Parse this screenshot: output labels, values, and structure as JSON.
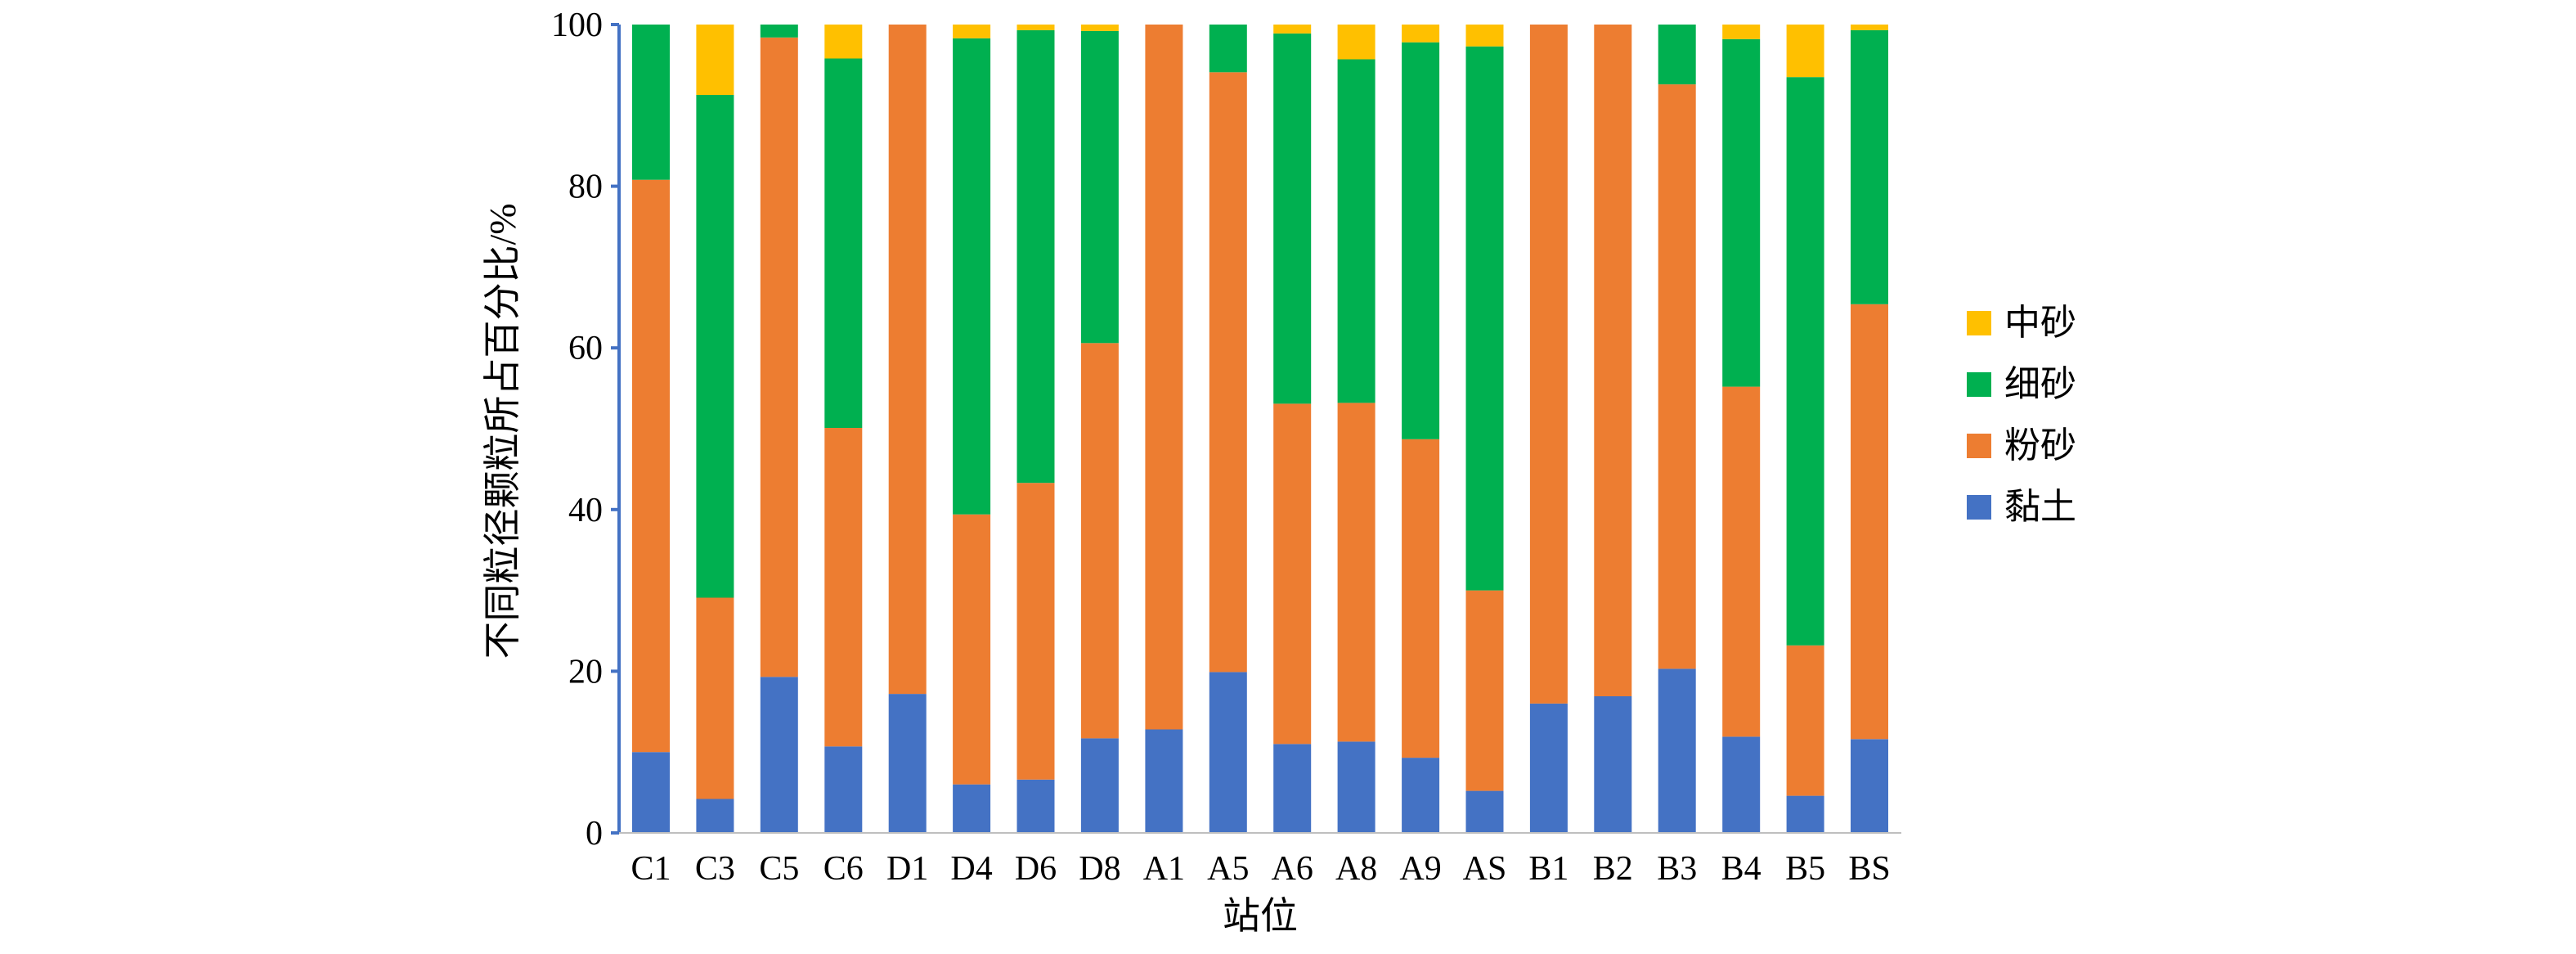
{
  "chart_data": {
    "type": "bar",
    "stacked": true,
    "title": "",
    "xlabel": "站位",
    "ylabel": "不同粒径颗粒所占百分比/%",
    "ylim": [
      0,
      100
    ],
    "yticks": [
      "0",
      "20",
      "40",
      "60",
      "80",
      "100"
    ],
    "grid": false,
    "legend_position": "right",
    "categories": [
      "C1",
      "C3",
      "C5",
      "C6",
      "D1",
      "D4",
      "D6",
      "D8",
      "A1",
      "A5",
      "A6",
      "A8",
      "A9",
      "AS",
      "B1",
      "B2",
      "B3",
      "B4",
      "B5",
      "BS"
    ],
    "series": [
      {
        "name": "黏土",
        "color": "#4472C4",
        "values": [
          10.0,
          4.2,
          19.3,
          10.7,
          17.2,
          6.0,
          6.6,
          11.7,
          12.8,
          19.9,
          11.0,
          11.3,
          9.3,
          5.2,
          16.0,
          16.9,
          20.3,
          11.9,
          4.6,
          11.6
        ]
      },
      {
        "name": "粉砂",
        "color": "#ED7D31",
        "values": [
          70.8,
          24.9,
          79.1,
          39.4,
          82.8,
          33.4,
          36.7,
          48.9,
          87.2,
          74.2,
          42.1,
          41.9,
          39.4,
          24.8,
          84.0,
          83.1,
          72.3,
          43.3,
          18.6,
          53.8
        ]
      },
      {
        "name": "细砂",
        "color": "#00B050",
        "values": [
          19.2,
          62.2,
          1.6,
          45.7,
          0.0,
          58.9,
          56.0,
          38.6,
          0.4,
          6.0,
          45.8,
          42.5,
          49.1,
          67.3,
          0.0,
          0.0,
          7.4,
          43.0,
          70.3,
          33.9
        ]
      },
      {
        "name": "中砂",
        "color": "#FFC000",
        "values": [
          0.0,
          8.7,
          0.0,
          4.2,
          0.0,
          1.7,
          0.7,
          0.8,
          0.0,
          0.0,
          1.1,
          4.3,
          2.2,
          2.7,
          0.0,
          0.0,
          0.0,
          1.8,
          6.5,
          0.7
        ]
      }
    ],
    "legend_order": [
      "中砂",
      "细砂",
      "粉砂",
      "黏土"
    ]
  }
}
